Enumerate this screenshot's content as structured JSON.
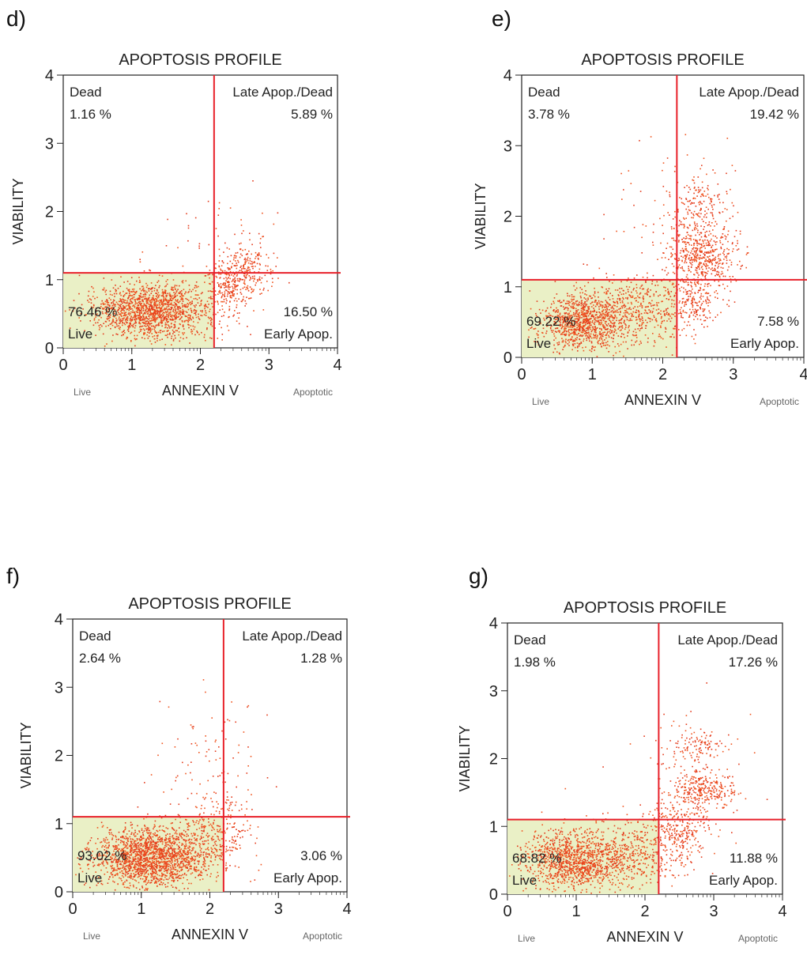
{
  "chart_data": [
    {
      "type": "scatter",
      "panel": "d)",
      "title": "APOPTOSIS PROFILE",
      "xlabel": "ANNEXIN V",
      "ylabel": "VIABILITY",
      "x_left_label": "Live",
      "x_right_label": "Apoptotic",
      "xlim": [
        0,
        4
      ],
      "ylim": [
        0,
        4
      ],
      "xticks": [
        "0",
        "1",
        "2",
        "3",
        "4"
      ],
      "yticks": [
        "0",
        "1",
        "2",
        "3",
        "4"
      ],
      "gate_x": 2.2,
      "gate_y": 1.1,
      "quadrants": {
        "dead": {
          "name": "Dead",
          "value": "1.16 %"
        },
        "late": {
          "name": "Late Apop./Dead",
          "value": "5.89 %"
        },
        "live": {
          "name": "Live",
          "value": "76.46 %"
        },
        "early": {
          "name": "Early Apop.",
          "value": "16.50 %"
        }
      },
      "clusters": [
        {
          "cx": 1.3,
          "cy": 0.55,
          "sx": 0.42,
          "sy": 0.2,
          "n": 1500
        },
        {
          "cx": 2.45,
          "cy": 0.9,
          "sx": 0.17,
          "sy": 0.22,
          "n": 260
        },
        {
          "cx": 2.7,
          "cy": 1.2,
          "sx": 0.2,
          "sy": 0.22,
          "n": 170
        },
        {
          "cx": 2.25,
          "cy": 1.7,
          "sx": 0.4,
          "sy": 0.3,
          "n": 35
        }
      ]
    },
    {
      "type": "scatter",
      "panel": "e)",
      "title": "APOPTOSIS PROFILE",
      "xlabel": "ANNEXIN V",
      "ylabel": "VIABILITY",
      "x_left_label": "Live",
      "x_right_label": "Apoptotic",
      "xlim": [
        0,
        4
      ],
      "ylim": [
        0,
        4
      ],
      "xticks": [
        "0",
        "1",
        "2",
        "3",
        "4"
      ],
      "yticks": [
        "0",
        "1",
        "2",
        "3",
        "4"
      ],
      "gate_x": 2.2,
      "gate_y": 1.1,
      "quadrants": {
        "dead": {
          "name": "Dead",
          "value": "3.78 %"
        },
        "late": {
          "name": "Late Apop./Dead",
          "value": "19.42 %"
        },
        "live": {
          "name": "Live",
          "value": "69.22 %"
        },
        "early": {
          "name": "Early Apop.",
          "value": "7.58 %"
        }
      },
      "clusters": [
        {
          "cx": 0.85,
          "cy": 0.5,
          "sx": 0.3,
          "sy": 0.2,
          "n": 900
        },
        {
          "cx": 1.6,
          "cy": 0.65,
          "sx": 0.45,
          "sy": 0.25,
          "n": 550
        },
        {
          "cx": 2.45,
          "cy": 0.9,
          "sx": 0.18,
          "sy": 0.25,
          "n": 220
        },
        {
          "cx": 2.55,
          "cy": 1.45,
          "sx": 0.25,
          "sy": 0.2,
          "n": 450
        },
        {
          "cx": 2.5,
          "cy": 2.1,
          "sx": 0.2,
          "sy": 0.25,
          "n": 200
        },
        {
          "cx": 2.2,
          "cy": 2.0,
          "sx": 0.55,
          "sy": 0.5,
          "n": 60
        }
      ]
    },
    {
      "type": "scatter",
      "panel": "f)",
      "title": "APOPTOSIS PROFILE",
      "xlabel": "ANNEXIN V",
      "ylabel": "VIABILITY",
      "x_left_label": "Live",
      "x_right_label": "Apoptotic",
      "xlim": [
        0,
        4
      ],
      "ylim": [
        0,
        4
      ],
      "xticks": [
        "0",
        "1",
        "2",
        "3",
        "4"
      ],
      "yticks": [
        "0",
        "1",
        "2",
        "3",
        "4"
      ],
      "gate_x": 2.2,
      "gate_y": 1.1,
      "quadrants": {
        "dead": {
          "name": "Dead",
          "value": "2.64 %"
        },
        "late": {
          "name": "Late Apop./Dead",
          "value": "1.28 %"
        },
        "live": {
          "name": "Live",
          "value": "93.02 %"
        },
        "early": {
          "name": "Early Apop.",
          "value": "3.06 %"
        }
      },
      "clusters": [
        {
          "cx": 1.1,
          "cy": 0.5,
          "sx": 0.4,
          "sy": 0.22,
          "n": 1700
        },
        {
          "cx": 1.9,
          "cy": 0.7,
          "sx": 0.3,
          "sy": 0.25,
          "n": 300
        },
        {
          "cx": 2.25,
          "cy": 1.1,
          "sx": 0.2,
          "sy": 0.3,
          "n": 90
        },
        {
          "cx": 2.0,
          "cy": 1.9,
          "sx": 0.4,
          "sy": 0.5,
          "n": 90
        }
      ]
    },
    {
      "type": "scatter",
      "panel": "g)",
      "title": "APOPTOSIS PROFILE",
      "xlabel": "ANNEXIN V",
      "ylabel": "VIABILITY",
      "x_left_label": "Live",
      "x_right_label": "Apoptotic",
      "xlim": [
        0,
        4
      ],
      "ylim": [
        0,
        4
      ],
      "xticks": [
        "0",
        "1",
        "2",
        "3",
        "4"
      ],
      "yticks": [
        "0",
        "1",
        "2",
        "3",
        "4"
      ],
      "gate_x": 2.2,
      "gate_y": 1.1,
      "quadrants": {
        "dead": {
          "name": "Dead",
          "value": "1.98 %"
        },
        "late": {
          "name": "Late Apop./Dead",
          "value": "17.26 %"
        },
        "live": {
          "name": "Live",
          "value": "68.82 %"
        },
        "early": {
          "name": "Early Apop.",
          "value": "11.88 %"
        }
      },
      "clusters": [
        {
          "cx": 0.95,
          "cy": 0.5,
          "sx": 0.35,
          "sy": 0.22,
          "n": 1100
        },
        {
          "cx": 1.8,
          "cy": 0.6,
          "sx": 0.4,
          "sy": 0.25,
          "n": 450
        },
        {
          "cx": 2.5,
          "cy": 0.95,
          "sx": 0.22,
          "sy": 0.25,
          "n": 260
        },
        {
          "cx": 2.85,
          "cy": 1.55,
          "sx": 0.25,
          "sy": 0.15,
          "n": 300
        },
        {
          "cx": 2.8,
          "cy": 2.2,
          "sx": 0.2,
          "sy": 0.15,
          "n": 110
        },
        {
          "cx": 2.5,
          "cy": 1.8,
          "sx": 0.5,
          "sy": 0.45,
          "n": 60
        }
      ]
    }
  ]
}
